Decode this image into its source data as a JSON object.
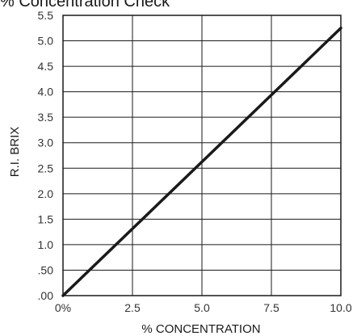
{
  "chart_data": {
    "type": "line",
    "title": "% Concentration Check",
    "xlabel": "% CONCENTRATION",
    "ylabel": "R.I. BRIX",
    "xlim": [
      0,
      10
    ],
    "ylim": [
      0,
      5.5
    ],
    "x_ticks": [
      0,
      2.5,
      5.0,
      7.5,
      10.0
    ],
    "x_tick_labels": [
      "0%",
      "2.5",
      "5.0",
      "7.5",
      "10.0"
    ],
    "y_ticks": [
      0,
      0.5,
      1.0,
      1.5,
      2.0,
      2.5,
      3.0,
      3.5,
      4.0,
      4.5,
      5.0,
      5.5
    ],
    "y_tick_labels": [
      ".00",
      ".50",
      "1.0",
      "1.5",
      "2.0",
      "2.5",
      "3.0",
      "3.5",
      "4.0",
      "4.5",
      "5.0",
      "5.5"
    ],
    "grid": true,
    "series": [
      {
        "x": [
          0,
          10
        ],
        "y": [
          0,
          5.25
        ]
      }
    ]
  },
  "colors": {
    "line": "#1a1a1a",
    "grid": "#1a1a1a",
    "text": "#1a1a1a"
  }
}
